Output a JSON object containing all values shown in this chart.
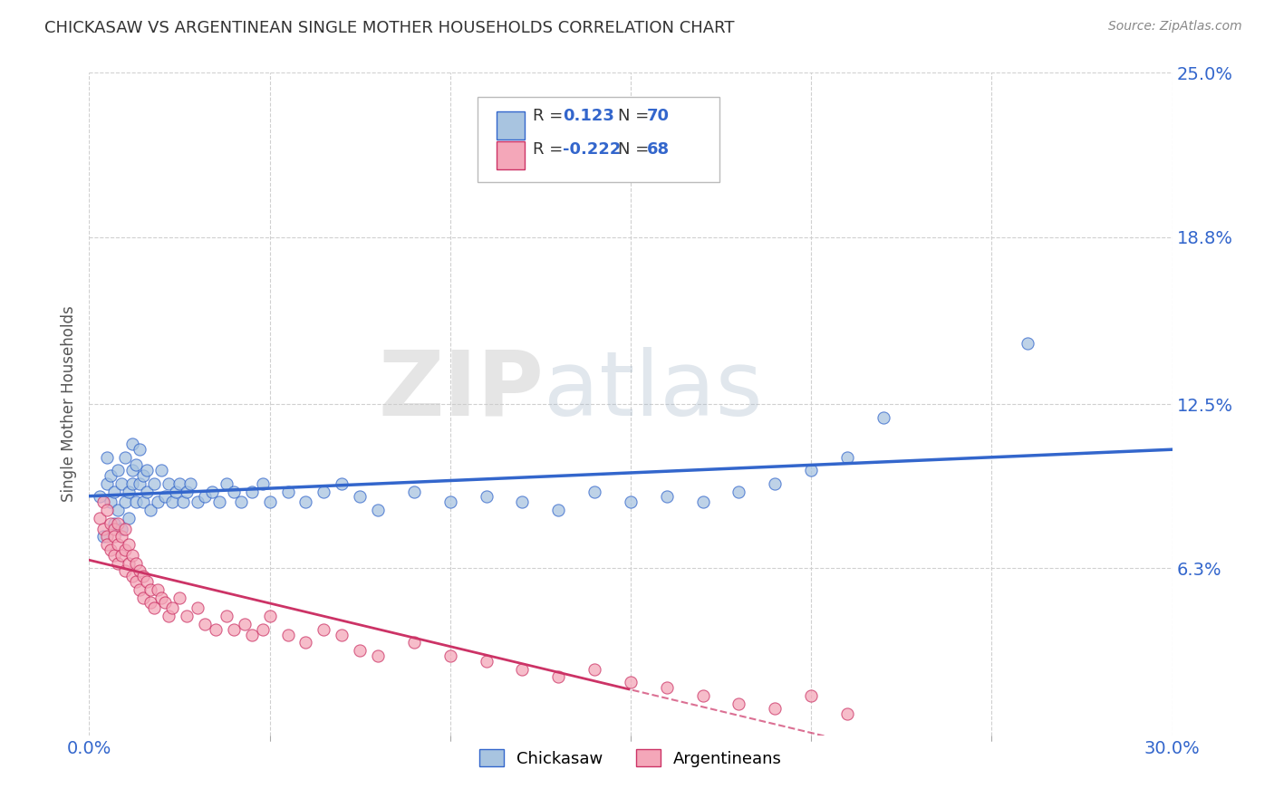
{
  "title": "CHICKASAW VS ARGENTINEAN SINGLE MOTHER HOUSEHOLDS CORRELATION CHART",
  "source": "Source: ZipAtlas.com",
  "ylabel": "Single Mother Households",
  "xlim": [
    0.0,
    0.3
  ],
  "ylim": [
    0.0,
    0.25
  ],
  "ytick_labels": [
    "6.3%",
    "12.5%",
    "18.8%",
    "25.0%"
  ],
  "ytick_vals": [
    0.063,
    0.125,
    0.188,
    0.25
  ],
  "chickasaw_color": "#a8c4e0",
  "argentinean_color": "#f4a7b9",
  "trendline_chickasaw_color": "#3366cc",
  "trendline_argentinean_color": "#cc3366",
  "background_color": "#ffffff",
  "grid_color": "#d0d0d0",
  "watermark_zip": "ZIP",
  "watermark_atlas": "atlas",
  "title_color": "#333333",
  "axis_label_color": "#555555",
  "tick_color": "#3366cc",
  "chickasaw_x": [
    0.003,
    0.004,
    0.005,
    0.005,
    0.006,
    0.006,
    0.007,
    0.007,
    0.008,
    0.008,
    0.009,
    0.009,
    0.01,
    0.01,
    0.011,
    0.011,
    0.012,
    0.012,
    0.012,
    0.013,
    0.013,
    0.014,
    0.014,
    0.015,
    0.015,
    0.016,
    0.016,
    0.017,
    0.018,
    0.019,
    0.02,
    0.021,
    0.022,
    0.023,
    0.024,
    0.025,
    0.026,
    0.027,
    0.028,
    0.03,
    0.032,
    0.034,
    0.036,
    0.038,
    0.04,
    0.042,
    0.045,
    0.048,
    0.05,
    0.055,
    0.06,
    0.065,
    0.07,
    0.075,
    0.08,
    0.09,
    0.1,
    0.11,
    0.12,
    0.13,
    0.14,
    0.15,
    0.16,
    0.17,
    0.18,
    0.19,
    0.2,
    0.21,
    0.22,
    0.26
  ],
  "chickasaw_y": [
    0.09,
    0.075,
    0.095,
    0.105,
    0.088,
    0.098,
    0.08,
    0.092,
    0.085,
    0.1,
    0.078,
    0.095,
    0.088,
    0.105,
    0.092,
    0.082,
    0.095,
    0.1,
    0.11,
    0.088,
    0.102,
    0.095,
    0.108,
    0.098,
    0.088,
    0.092,
    0.1,
    0.085,
    0.095,
    0.088,
    0.1,
    0.09,
    0.095,
    0.088,
    0.092,
    0.095,
    0.088,
    0.092,
    0.095,
    0.088,
    0.09,
    0.092,
    0.088,
    0.095,
    0.092,
    0.088,
    0.092,
    0.095,
    0.088,
    0.092,
    0.088,
    0.092,
    0.095,
    0.09,
    0.085,
    0.092,
    0.088,
    0.09,
    0.088,
    0.085,
    0.092,
    0.088,
    0.09,
    0.088,
    0.092,
    0.095,
    0.1,
    0.105,
    0.12,
    0.148
  ],
  "argentinean_x": [
    0.003,
    0.004,
    0.004,
    0.005,
    0.005,
    0.005,
    0.006,
    0.006,
    0.007,
    0.007,
    0.007,
    0.008,
    0.008,
    0.008,
    0.009,
    0.009,
    0.01,
    0.01,
    0.01,
    0.011,
    0.011,
    0.012,
    0.012,
    0.013,
    0.013,
    0.014,
    0.014,
    0.015,
    0.015,
    0.016,
    0.017,
    0.017,
    0.018,
    0.019,
    0.02,
    0.021,
    0.022,
    0.023,
    0.025,
    0.027,
    0.03,
    0.032,
    0.035,
    0.038,
    0.04,
    0.043,
    0.045,
    0.048,
    0.05,
    0.055,
    0.06,
    0.065,
    0.07,
    0.075,
    0.08,
    0.09,
    0.1,
    0.11,
    0.12,
    0.13,
    0.14,
    0.15,
    0.16,
    0.17,
    0.18,
    0.19,
    0.2,
    0.21
  ],
  "argentinean_y": [
    0.082,
    0.078,
    0.088,
    0.075,
    0.085,
    0.072,
    0.08,
    0.07,
    0.078,
    0.068,
    0.075,
    0.072,
    0.065,
    0.08,
    0.068,
    0.075,
    0.07,
    0.062,
    0.078,
    0.065,
    0.072,
    0.068,
    0.06,
    0.065,
    0.058,
    0.062,
    0.055,
    0.06,
    0.052,
    0.058,
    0.055,
    0.05,
    0.048,
    0.055,
    0.052,
    0.05,
    0.045,
    0.048,
    0.052,
    0.045,
    0.048,
    0.042,
    0.04,
    0.045,
    0.04,
    0.042,
    0.038,
    0.04,
    0.045,
    0.038,
    0.035,
    0.04,
    0.038,
    0.032,
    0.03,
    0.035,
    0.03,
    0.028,
    0.025,
    0.022,
    0.025,
    0.02,
    0.018,
    0.015,
    0.012,
    0.01,
    0.015,
    0.008
  ],
  "arg_trendline_solid_end": 0.15,
  "chick_trendline_start_y": 0.082,
  "chick_trendline_end_y": 0.11
}
